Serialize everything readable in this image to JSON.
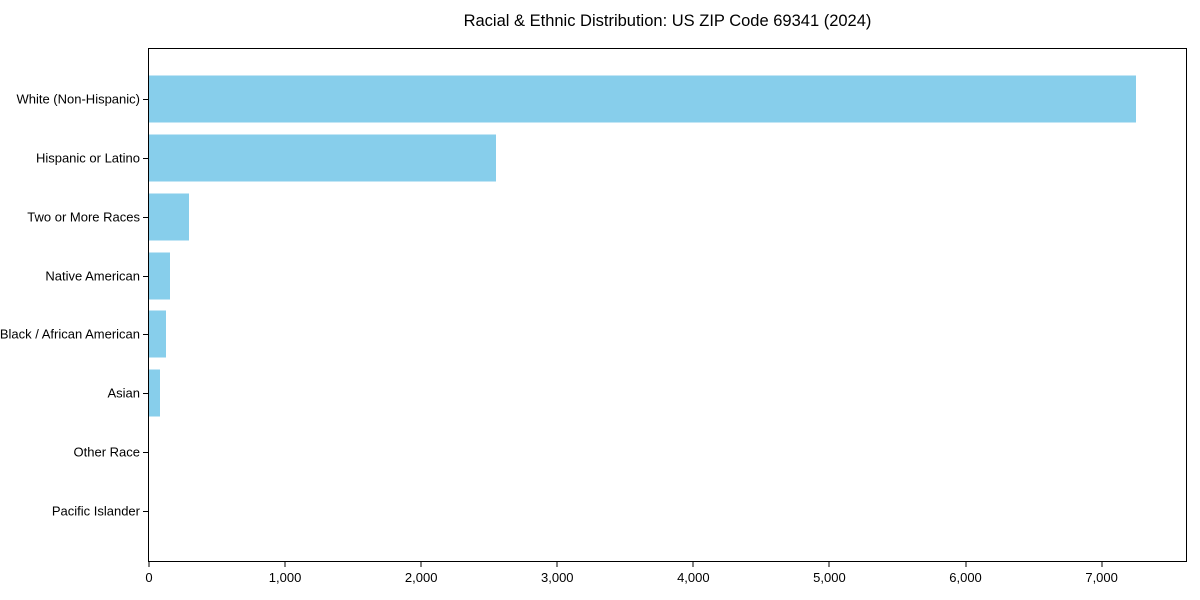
{
  "chart_data": {
    "type": "bar",
    "orientation": "horizontal",
    "title": "Racial & Ethnic Distribution: US ZIP Code 69341 (2024)",
    "categories": [
      "White (Non-Hispanic)",
      "Hispanic or Latino",
      "Two or More Races",
      "Native American",
      "Black / African American",
      "Asian",
      "Other Race",
      "Pacific Islander"
    ],
    "values": [
      7250,
      2550,
      295,
      155,
      127,
      79,
      0,
      0
    ],
    "xlabel": "",
    "ylabel": "",
    "xlim": [
      0,
      7620
    ],
    "x_ticks": [
      0,
      1000,
      2000,
      3000,
      4000,
      5000,
      6000,
      7000
    ],
    "x_tick_labels": [
      "0",
      "1,000",
      "2,000",
      "3,000",
      "4,000",
      "5,000",
      "6,000",
      "7,000"
    ],
    "bar_color": "#87CEEB",
    "axis_color": "#000000",
    "text_color": "#000000",
    "background_color": "#ffffff",
    "grid": false,
    "legend": null
  }
}
